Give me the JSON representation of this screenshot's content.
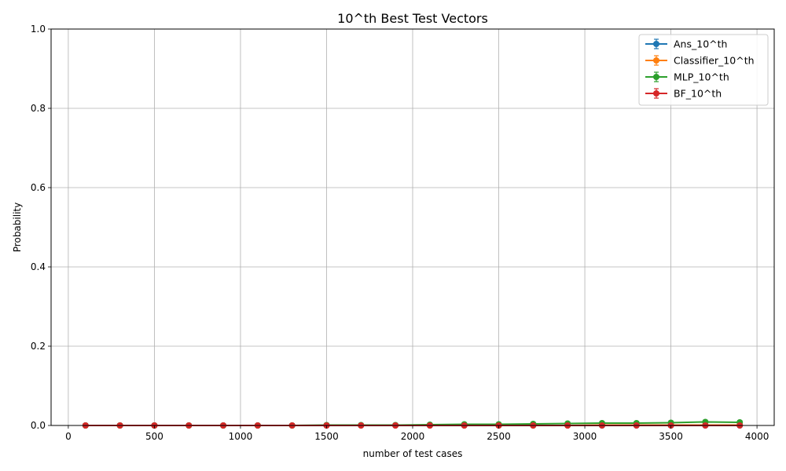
{
  "chart_data": {
    "type": "line",
    "title": "10^th Best Test Vectors",
    "xlabel": "number of test cases",
    "ylabel": "Probability",
    "xlim": [
      -100,
      4100
    ],
    "ylim": [
      0,
      1.0
    ],
    "xticks": [
      0,
      500,
      1000,
      1500,
      2000,
      2500,
      3000,
      3500,
      4000
    ],
    "yticks": [
      0.0,
      0.2,
      0.4,
      0.6,
      0.8,
      1.0
    ],
    "grid": true,
    "legend_position": "top-right",
    "x": [
      100,
      300,
      500,
      700,
      900,
      1100,
      1300,
      1500,
      1700,
      1900,
      2100,
      2300,
      2500,
      2700,
      2900,
      3100,
      3300,
      3500,
      3700,
      3900
    ],
    "series": [
      {
        "name": "Ans_10^th",
        "color": "#1f77b4",
        "values": [
          0.0,
          0.0,
          0.0,
          0.0,
          0.0,
          0.0,
          0.0,
          0.0,
          0.0,
          0.0,
          0.0,
          0.0,
          0.0,
          0.0,
          0.0,
          0.0,
          0.0,
          0.0,
          0.0,
          0.0
        ]
      },
      {
        "name": "Classifier_10^th",
        "color": "#ff7f0e",
        "values": [
          0.0,
          0.0,
          0.0,
          0.0,
          0.0,
          0.0,
          0.0,
          0.0,
          0.0,
          0.0,
          0.0,
          0.0,
          0.0,
          0.0,
          0.0,
          0.001,
          0.001,
          0.001,
          0.001,
          0.001
        ]
      },
      {
        "name": "MLP_10^th",
        "color": "#2ca02c",
        "values": [
          0.0,
          0.0,
          0.0,
          0.0,
          0.0,
          0.0,
          0.0,
          0.001,
          0.001,
          0.001,
          0.002,
          0.003,
          0.003,
          0.004,
          0.005,
          0.006,
          0.006,
          0.007,
          0.009,
          0.008
        ]
      },
      {
        "name": "BF_10^th",
        "color": "#d62728",
        "values": [
          0.0,
          0.0,
          0.0,
          0.0,
          0.0,
          0.0,
          0.0,
          0.0,
          0.0,
          0.0,
          0.0,
          0.0,
          0.0,
          0.0,
          0.0,
          0.0,
          0.0,
          0.0,
          0.0,
          0.0
        ]
      }
    ]
  }
}
